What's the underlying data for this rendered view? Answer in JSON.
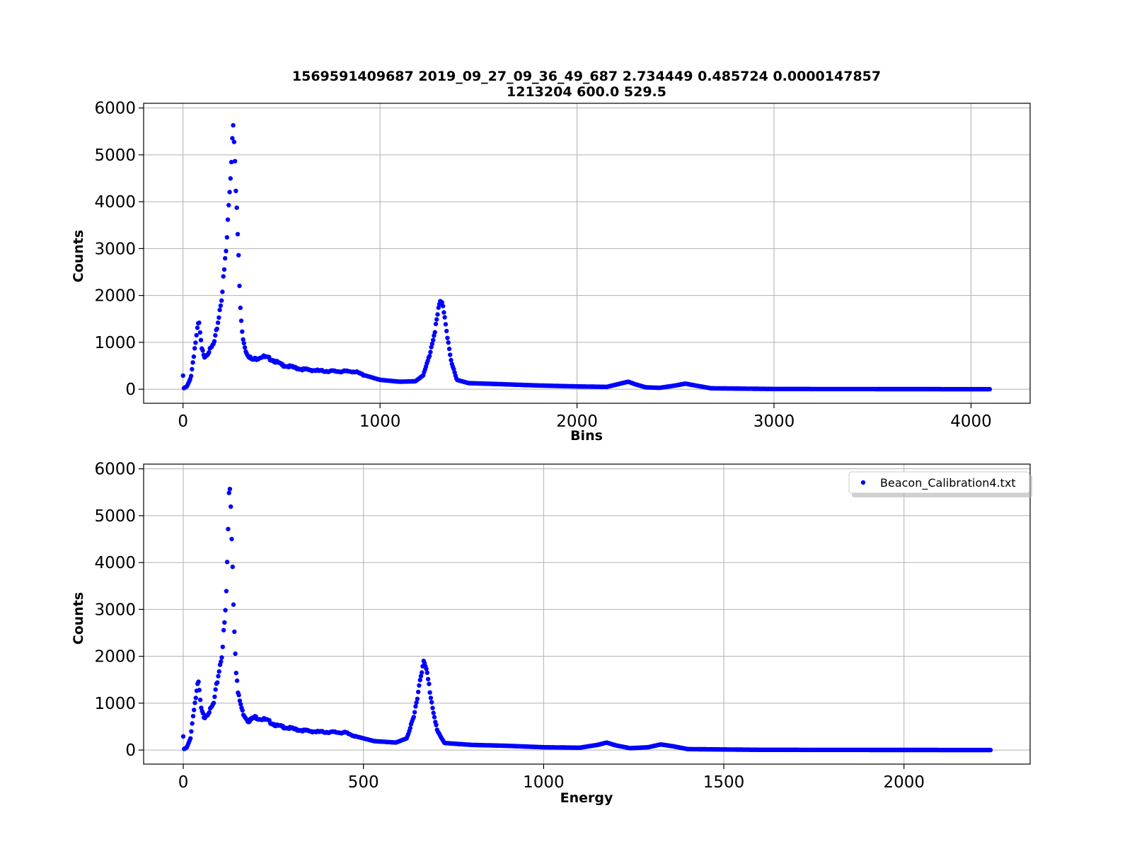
{
  "figure": {
    "title_line1": "1569591409687 2019_09_27_09_36_49_687 2.734449 0.485724  0.0000147857",
    "title_line2": "1213204  600.0  529.5",
    "marker_color": "#0000ff"
  },
  "chart_data": [
    {
      "type": "scatter",
      "xlabel": "Bins",
      "ylabel": "Counts",
      "xlim": [
        -200,
        4300
      ],
      "ylim": [
        -300,
        6100
      ],
      "xticks": [
        0,
        1000,
        2000,
        3000,
        4000
      ],
      "xtick_labels": [
        "0",
        "1000",
        "2000",
        "3000",
        "4000"
      ],
      "yticks": [
        0,
        1000,
        2000,
        3000,
        4000,
        5000,
        6000
      ],
      "ytick_labels": [
        "0",
        "1000",
        "2000",
        "3000",
        "4000",
        "5000",
        "6000"
      ],
      "grid": true,
      "x_range": [
        0,
        4095
      ],
      "series": [
        {
          "color": "#0000ff",
          "keypoints": [
            [
              0,
              290
            ],
            [
              3,
              20
            ],
            [
              20,
              60
            ],
            [
              40,
              250
            ],
            [
              60,
              900
            ],
            [
              80,
              1450
            ],
            [
              95,
              850
            ],
            [
              110,
              700
            ],
            [
              140,
              850
            ],
            [
              160,
              1000
            ],
            [
              180,
              1500
            ],
            [
              200,
              2100
            ],
            [
              220,
              3000
            ],
            [
              240,
              4500
            ],
            [
              255,
              5800
            ],
            [
              262,
              5300
            ],
            [
              270,
              4200
            ],
            [
              280,
              3000
            ],
            [
              290,
              1800
            ],
            [
              300,
              1200
            ],
            [
              320,
              800
            ],
            [
              350,
              620
            ],
            [
              400,
              700
            ],
            [
              450,
              640
            ],
            [
              500,
              520
            ],
            [
              600,
              430
            ],
            [
              700,
              390
            ],
            [
              800,
              380
            ],
            [
              870,
              380
            ],
            [
              920,
              300
            ],
            [
              1000,
              200
            ],
            [
              1100,
              160
            ],
            [
              1180,
              170
            ],
            [
              1220,
              300
            ],
            [
              1250,
              700
            ],
            [
              1280,
              1300
            ],
            [
              1305,
              1850
            ],
            [
              1320,
              1800
            ],
            [
              1340,
              1200
            ],
            [
              1360,
              600
            ],
            [
              1390,
              200
            ],
            [
              1450,
              130
            ],
            [
              1600,
              110
            ],
            [
              1800,
              80
            ],
            [
              2000,
              60
            ],
            [
              2150,
              50
            ],
            [
              2220,
              120
            ],
            [
              2260,
              160
            ],
            [
              2300,
              100
            ],
            [
              2350,
              40
            ],
            [
              2420,
              30
            ],
            [
              2500,
              80
            ],
            [
              2550,
              120
            ],
            [
              2600,
              80
            ],
            [
              2680,
              20
            ],
            [
              3000,
              5
            ],
            [
              4095,
              0
            ]
          ]
        }
      ]
    },
    {
      "type": "scatter",
      "xlabel": "Energy",
      "ylabel": "Counts",
      "xlim": [
        -110,
        2350
      ],
      "ylim": [
        -300,
        6100
      ],
      "xticks": [
        0,
        500,
        1000,
        1500,
        2000
      ],
      "xtick_labels": [
        "0",
        "500",
        "1000",
        "1500",
        "2000"
      ],
      "yticks": [
        0,
        1000,
        2000,
        3000,
        4000,
        5000,
        6000
      ],
      "ytick_labels": [
        "0",
        "1000",
        "2000",
        "3000",
        "4000",
        "5000",
        "6000"
      ],
      "grid": true,
      "x_range": [
        0,
        2240
      ],
      "legend_position": "top-right",
      "series": [
        {
          "name": "Beacon_Calibration4.txt",
          "color": "#0000ff",
          "keypoints": [
            [
              0,
              290
            ],
            [
              2,
              20
            ],
            [
              10,
              60
            ],
            [
              20,
              250
            ],
            [
              30,
              900
            ],
            [
              42,
              1450
            ],
            [
              50,
              850
            ],
            [
              58,
              700
            ],
            [
              75,
              850
            ],
            [
              85,
              1000
            ],
            [
              95,
              1500
            ],
            [
              108,
              2100
            ],
            [
              118,
              3000
            ],
            [
              124,
              4500
            ],
            [
              128,
              5800
            ],
            [
              132,
              5300
            ],
            [
              136,
              4200
            ],
            [
              140,
              3000
            ],
            [
              146,
              1800
            ],
            [
              152,
              1200
            ],
            [
              165,
              800
            ],
            [
              180,
              620
            ],
            [
              200,
              700
            ],
            [
              230,
              640
            ],
            [
              260,
              520
            ],
            [
              320,
              430
            ],
            [
              370,
              390
            ],
            [
              420,
              380
            ],
            [
              450,
              370
            ],
            [
              480,
              290
            ],
            [
              530,
              190
            ],
            [
              590,
              160
            ],
            [
              620,
              250
            ],
            [
              640,
              700
            ],
            [
              655,
              1400
            ],
            [
              665,
              1880
            ],
            [
              675,
              1700
            ],
            [
              690,
              1000
            ],
            [
              705,
              400
            ],
            [
              725,
              150
            ],
            [
              800,
              110
            ],
            [
              900,
              90
            ],
            [
              1000,
              60
            ],
            [
              1100,
              50
            ],
            [
              1150,
              110
            ],
            [
              1175,
              160
            ],
            [
              1200,
              100
            ],
            [
              1240,
              40
            ],
            [
              1290,
              60
            ],
            [
              1325,
              120
            ],
            [
              1360,
              80
            ],
            [
              1400,
              20
            ],
            [
              1600,
              5
            ],
            [
              2240,
              0
            ]
          ]
        }
      ]
    }
  ]
}
